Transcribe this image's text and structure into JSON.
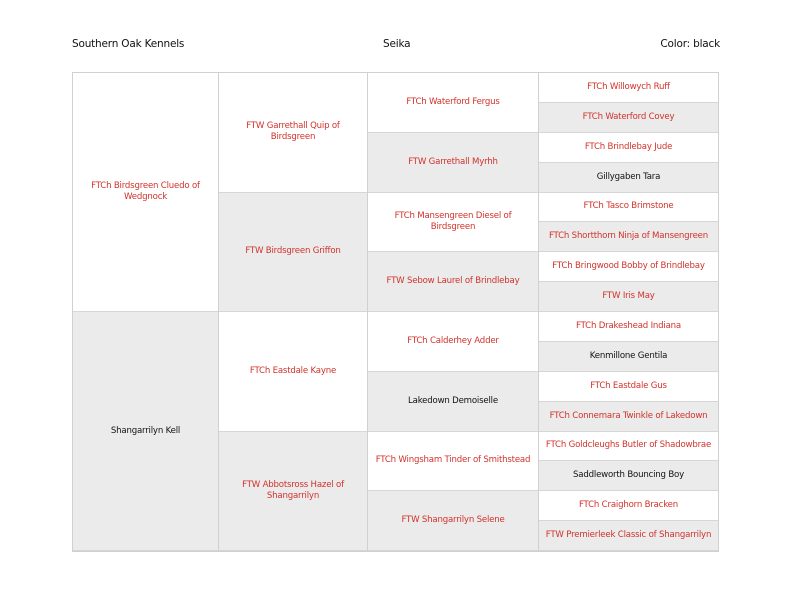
{
  "header": {
    "kennel": "Southern Oak Kennels",
    "dog_name": "Seika",
    "color": "Color: black"
  },
  "colors": {
    "titled": "#d1322b",
    "untitled": "#111111",
    "alt_row": "#ebebeb"
  },
  "pedigree": {
    "generation1": [
      {
        "name": "FTCh Birdsgreen Cluedo of Wedgnock",
        "red": true
      },
      {
        "name": "Shangarrilyn Kell",
        "red": false
      }
    ],
    "generation2": [
      {
        "name": "FTW Garrethall Quip of Birdsgreen",
        "red": true
      },
      {
        "name": "FTW Birdsgreen Griffon",
        "red": true
      },
      {
        "name": "FTCh Eastdale Kayne",
        "red": true
      },
      {
        "name": "FTW Abbotsross Hazel of Shangarrilyn",
        "red": true
      }
    ],
    "generation3": [
      {
        "name": "FTCh Waterford Fergus",
        "red": true
      },
      {
        "name": "FTW Garrethall Myrhh",
        "red": true
      },
      {
        "name": "FTCh Mansengreen Diesel of Birdsgreen",
        "red": true
      },
      {
        "name": "FTW Sebow Laurel of Brindlebay",
        "red": true
      },
      {
        "name": "FTCh Calderhey Adder",
        "red": true
      },
      {
        "name": "Lakedown Demoiselle",
        "red": false
      },
      {
        "name": "FTCh Wingsham Tinder of Smithstead",
        "red": true
      },
      {
        "name": "FTW Shangarrilyn Selene",
        "red": true
      }
    ],
    "generation4": [
      {
        "name": "FTCh Willowych Ruff",
        "red": true
      },
      {
        "name": "FTCh Waterford Covey",
        "red": true
      },
      {
        "name": "FTCh Brindlebay Jude",
        "red": true
      },
      {
        "name": "Gillygaben Tara",
        "red": false
      },
      {
        "name": "FTCh Tasco Brimstone",
        "red": true
      },
      {
        "name": "FTCh Shortthorn Ninja of Mansengreen",
        "red": true
      },
      {
        "name": "FTCh Bringwood Bobby of Brindlebay",
        "red": true
      },
      {
        "name": "FTW Iris May",
        "red": true
      },
      {
        "name": "FTCh Drakeshead Indiana",
        "red": true
      },
      {
        "name": "Kenmillone Gentila",
        "red": false
      },
      {
        "name": "FTCh Eastdale Gus",
        "red": true
      },
      {
        "name": "FTCh Connemara Twinkle of Lakedown",
        "red": true
      },
      {
        "name": "FTCh Goldcleughs Butler of Shadowbrae",
        "red": true
      },
      {
        "name": "Saddleworth Bouncing Boy",
        "red": false
      },
      {
        "name": "FTCh Craighorn Bracken",
        "red": true
      },
      {
        "name": "FTW Premierleek Classic of Shangarrilyn",
        "red": true
      }
    ]
  }
}
